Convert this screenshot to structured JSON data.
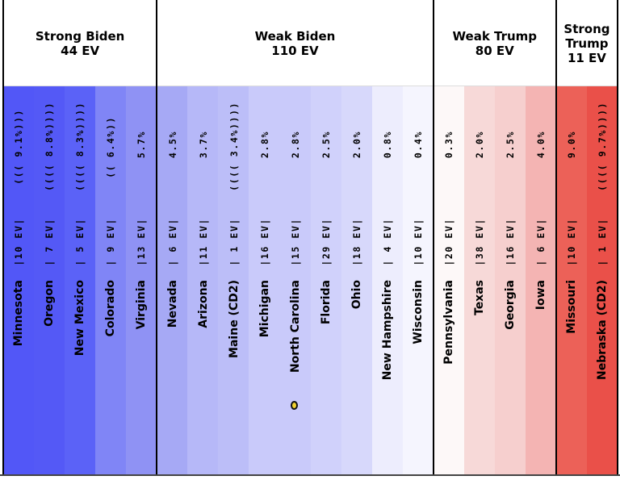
{
  "chart_data": {
    "type": "table",
    "groups": [
      {
        "label": "Strong Biden\n44 EV",
        "states": [
          {
            "name": "Minnesota",
            "ev": "|10 EV|",
            "margin": "((( 9.1%)))",
            "color": "#5257f7"
          },
          {
            "name": "Oregon",
            "ev": "| 7 EV|",
            "margin": "(((( 8.8%))))",
            "color": "#5459f6"
          },
          {
            "name": "New Mexico",
            "ev": "| 5 EV|",
            "margin": "(((( 8.3%))))",
            "color": "#5b62f7"
          },
          {
            "name": "Colorado",
            "ev": "| 9 EV|",
            "margin": "(( 6.4%))",
            "color": "#8085f6"
          },
          {
            "name": "Virginia",
            "ev": "|13 EV|",
            "margin": "5.7%",
            "color": "#8f92f4"
          }
        ]
      },
      {
        "label": "Weak Biden\n110 EV",
        "states": [
          {
            "name": "Nevada",
            "ev": "| 6 EV|",
            "margin": "4.5%",
            "color": "#a6a9f5"
          },
          {
            "name": "Arizona",
            "ev": "|11 EV|",
            "margin": "3.7%",
            "color": "#b6b8f8"
          },
          {
            "name": "Maine (CD2)",
            "ev": "| 1 EV|",
            "margin": "(((( 3.4%))))",
            "color": "#bcbef8"
          },
          {
            "name": "Michigan",
            "ev": "|16 EV|",
            "margin": "2.8%",
            "color": "#c9cafa"
          },
          {
            "name": "North Carolina",
            "ev": "|15 EV|",
            "margin": "2.8%",
            "color": "#c9cafa",
            "marker": true
          },
          {
            "name": "Florida",
            "ev": "|29 EV|",
            "margin": "2.5%",
            "color": "#d0d1fb"
          },
          {
            "name": "Ohio",
            "ev": "|18 EV|",
            "margin": "2.0%",
            "color": "#d7d8fb"
          },
          {
            "name": "New Hampshire",
            "ev": "| 4 EV|",
            "margin": "0.8%",
            "color": "#ededfd"
          },
          {
            "name": "Wisconsin",
            "ev": "|10 EV|",
            "margin": "0.4%",
            "color": "#f5f5fe"
          }
        ]
      },
      {
        "label": "Weak Trump\n80 EV",
        "states": [
          {
            "name": "Pennsylvania",
            "ev": "|20 EV|",
            "margin": "0.3%",
            "color": "#fdf8f8"
          },
          {
            "name": "Texas",
            "ev": "|38 EV|",
            "margin": "2.0%",
            "color": "#f7d9d8"
          },
          {
            "name": "Georgia",
            "ev": "|16 EV|",
            "margin": "2.5%",
            "color": "#f6cfce"
          },
          {
            "name": "Iowa",
            "ev": "| 6 EV|",
            "margin": "4.0%",
            "color": "#f4b4b3"
          }
        ]
      },
      {
        "label": "Strong\nTrump\n11 EV",
        "states": [
          {
            "name": "Missouri",
            "ev": "|10 EV|",
            "margin": "9.0%",
            "color": "#ec6158"
          },
          {
            "name": "Nebraska (CD2)",
            "ev": "| 1 EV|",
            "margin": "(((( 9.7%))))",
            "color": "#ea5049"
          }
        ]
      }
    ],
    "marker_color": "#f2d230"
  }
}
